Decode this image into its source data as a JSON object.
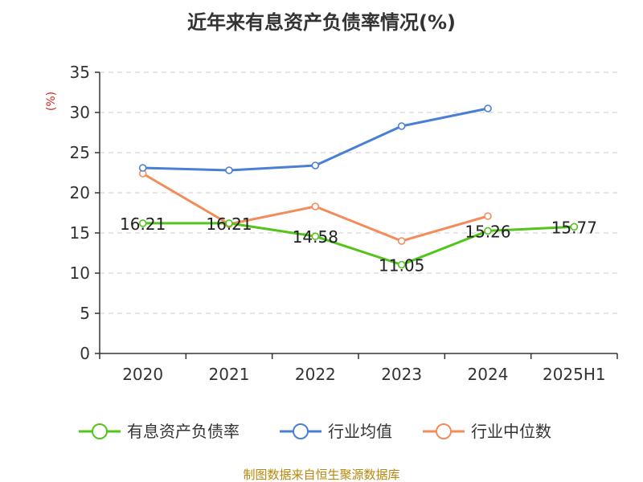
{
  "chart_data": {
    "type": "line",
    "title": "近年来有息资产负债率情况(%)",
    "ylabel": "(%)",
    "xlabel": "",
    "categories": [
      "2020",
      "2021",
      "2022",
      "2023",
      "2024",
      "2025H1"
    ],
    "ylim": [
      0,
      35
    ],
    "yticks": [
      0,
      5,
      10,
      15,
      20,
      25,
      30,
      35
    ],
    "grid": true,
    "legend_position": "bottom",
    "series": [
      {
        "name": "有息资产负债率",
        "color": "#52c41a",
        "values": [
          16.21,
          16.21,
          14.58,
          11.05,
          15.26,
          15.77
        ],
        "show_labels": true
      },
      {
        "name": "行业均值",
        "color": "#4a7fd6",
        "values": [
          23.1,
          22.8,
          23.4,
          28.3,
          30.5,
          null
        ],
        "show_labels": false
      },
      {
        "name": "行业中位数",
        "color": "#f28c5a",
        "values": [
          22.4,
          16.1,
          18.3,
          14.0,
          17.1,
          null
        ],
        "show_labels": false
      }
    ],
    "source": "制图数据来自恒生聚源数据库"
  }
}
